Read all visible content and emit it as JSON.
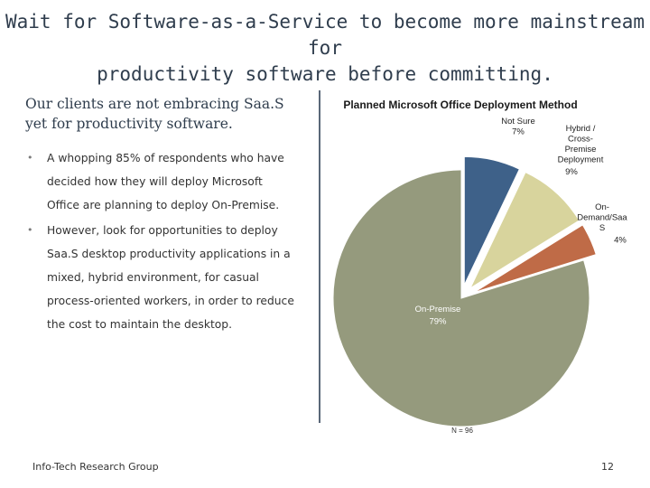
{
  "slide": {
    "title_line1": "Wait for Software-as-a-Service to become more mainstream for",
    "title_line2": "productivity software before committing.",
    "subtitle_line1": "Our clients are not embracing Saa.S",
    "subtitle_line2": "yet for productivity software.",
    "bullets": [
      [
        "A whopping 85% of respondents who have",
        "decided how they will deploy Microsoft",
        "Office are planning to deploy On-Premise."
      ],
      [
        "However, look for opportunities to deploy",
        "Saa.S desktop productivity applications in a",
        "mixed, hybrid environment, for casual",
        "process-oriented workers, in order to reduce",
        "the cost to maintain the desktop."
      ]
    ],
    "bullet_marker": "•",
    "footer_left": "Info-Tech Research Group",
    "page_number": "12"
  },
  "chart_data": {
    "type": "pie",
    "title": "Planned Microsoft Office Deployment Method",
    "categories": [
      "Not Sure",
      "Hybrid / Cross-Premise Deployment",
      "On-Demand/SaaS",
      "On-Premise"
    ],
    "values": [
      7,
      9,
      4,
      79
    ],
    "value_labels": [
      "7%",
      "9%",
      "4%",
      "79%"
    ],
    "label_lines": [
      [
        "Not Sure"
      ],
      [
        "Hybrid /",
        "Cross-",
        "Premise",
        "Deployment"
      ],
      [
        "On-",
        "Demand/Saa",
        "S"
      ],
      [
        "On-Premise"
      ]
    ],
    "exploded": [
      "Not Sure",
      "Hybrid / Cross-Premise Deployment",
      "On-Demand/SaaS"
    ],
    "colors": [
      "#3e6189",
      "#d8d49d",
      "#bf6b47",
      "#959a7d"
    ],
    "note": "N = 96"
  }
}
